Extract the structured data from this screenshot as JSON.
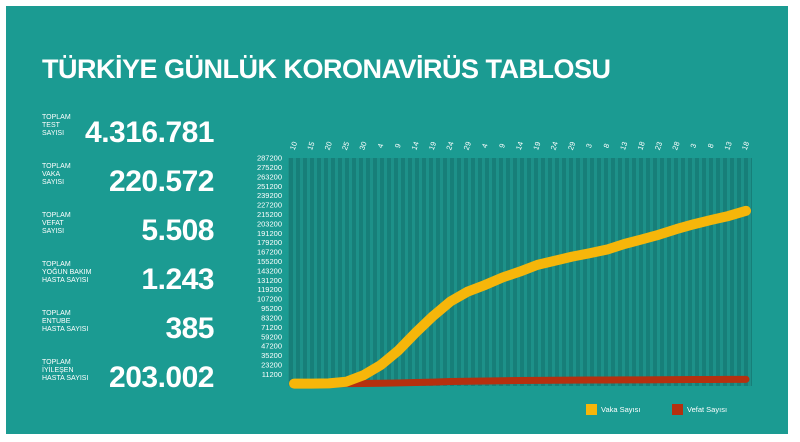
{
  "title": "TÜRKİYE GÜNLÜK KORONAVİRÜS TABLOSU",
  "stats": [
    {
      "label": [
        "TOPLAM",
        "TEST",
        "SAYISI"
      ],
      "value": "4.316.781"
    },
    {
      "label": [
        "TOPLAM",
        "VAKA",
        "SAYISI"
      ],
      "value": "220.572"
    },
    {
      "label": [
        "TOPLAM",
        "VEFAT",
        "SAYISI"
      ],
      "value": "5.508"
    },
    {
      "label": [
        "TOPLAM",
        "YOĞUN BAKIM",
        "HASTA SAYISI"
      ],
      "value": "1.243"
    },
    {
      "label": [
        "TOPLAM",
        "ENTUBE",
        "HASTA SAYISI"
      ],
      "value": "385"
    },
    {
      "label": [
        "TOPLAM",
        "İYİLEŞEN",
        "HASTA SAYISI"
      ],
      "value": "203.002"
    }
  ],
  "chart_data": {
    "type": "line",
    "categories": [
      "10",
      "15",
      "20",
      "25",
      "30",
      "4",
      "9",
      "14",
      "19",
      "24",
      "29",
      "4",
      "9",
      "14",
      "19",
      "24",
      "29",
      "3",
      "8",
      "13",
      "18",
      "23",
      "28",
      "3",
      "8",
      "13",
      "18"
    ],
    "series": [
      {
        "name": "Vaka Sayısı",
        "color": "#f6b60a",
        "values": [
          0,
          5,
          359,
          2433,
          10827,
          23934,
          42282,
          65111,
          86306,
          104912,
          117589,
          126045,
          135569,
          143114,
          151615,
          156827,
          162120,
          166422,
          171121,
          178239,
          184031,
          190165,
          197239,
          203456,
          208938,
          214001,
          220572
        ]
      },
      {
        "name": "Vefat Sayısı",
        "color": "#b5300f",
        "values": [
          0,
          0,
          4,
          59,
          214,
          501,
          908,
          1403,
          2017,
          2706,
          3081,
          3397,
          3739,
          3952,
          4199,
          4340,
          4489,
          4609,
          4729,
          4807,
          4882,
          4974,
          5082,
          5225,
          5282,
          5382,
          5508
        ]
      }
    ],
    "ylim": [
      -3000,
      288000
    ],
    "yticks": [
      287200,
      275200,
      263200,
      251200,
      239200,
      227200,
      215200,
      203200,
      191200,
      179200,
      167200,
      155200,
      143200,
      131200,
      119200,
      107200,
      95200,
      83200,
      71200,
      59200,
      47200,
      35200,
      23200,
      11200
    ]
  }
}
